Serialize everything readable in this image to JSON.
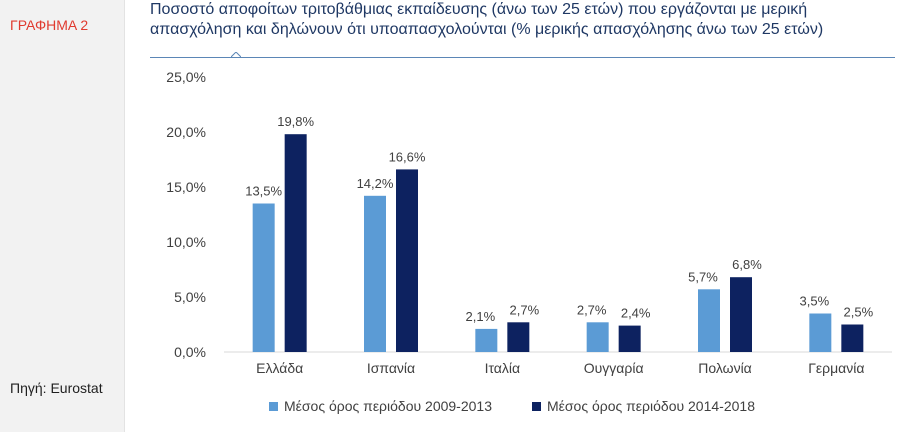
{
  "sidebar": {
    "figure_label": "ΓΡΑΦΗΜΑ 2",
    "source": "Πηγή: Eurostat"
  },
  "chart_data": {
    "type": "bar",
    "title": "Ποσοστό αποφοίτων τριτοβάθμιας εκπαίδευσης (άνω των 25 ετών) που εργάζονται με μερική απασχόληση και δηλώνουν ότι υποαπασχολούνται (% μερικής απασχόλησης άνω των 25 ετών)",
    "categories": [
      "Ελλάδα",
      "Ισπανία",
      "Ιταλία",
      "Ουγγαρία",
      "Πολωνία",
      "Γερμανία"
    ],
    "series": [
      {
        "name": "Μέσος  όρος περιόδου 2009-2013",
        "color": "#5b9bd5",
        "values": [
          13.5,
          14.2,
          2.1,
          2.7,
          5.7,
          3.5
        ],
        "labels": [
          "13,5%",
          "14,2%",
          "2,1%",
          "2,7%",
          "5,7%",
          "3,5%"
        ]
      },
      {
        "name": "Μέσος  όρος περιόδου 2014-2018",
        "color": "#0d2260",
        "values": [
          19.8,
          16.6,
          2.7,
          2.4,
          6.8,
          2.5
        ],
        "labels": [
          "19,8%",
          "16,6%",
          "2,7%",
          "2,4%",
          "6,8%",
          "2,5%"
        ]
      }
    ],
    "ylim": [
      0,
      25
    ],
    "yticks": [
      0,
      5,
      10,
      15,
      20,
      25
    ],
    "ytick_labels": [
      "0,0%",
      "5,0%",
      "10,0%",
      "15,0%",
      "20,0%",
      "25,0%"
    ],
    "grid": false,
    "legend_position": "bottom"
  }
}
